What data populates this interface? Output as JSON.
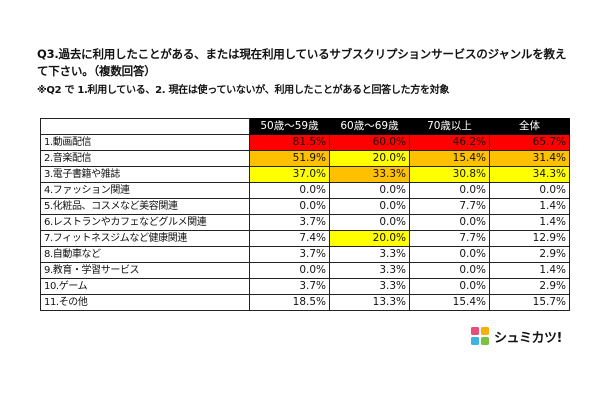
{
  "question": {
    "title": "Q3.過去に利用したことがある、または現在利用しているサブスクリプションサービスのジャンルを教えて下さい。（複数回答）",
    "note": "※Q2 で 1.利用している、2. 現在は使っていないが、利用したことがあると回答した方を対象"
  },
  "logo": {
    "text": "シュミカツ!",
    "icon": "shumikatsu-logo-icon"
  },
  "colors": {
    "red": "#ff0000",
    "orange": "#ffc000",
    "yellow": "#ffff00",
    "none": "#ffffff"
  },
  "chart_data": {
    "type": "table",
    "title": "",
    "columns": [
      "50歳〜59歳",
      "60歳〜69歳",
      "70歳以上",
      "全体"
    ],
    "rows": [
      {
        "label": "1.動画配信",
        "values": [
          "81.5%",
          "60.0%",
          "46.2%",
          "65.7%"
        ],
        "highlight": [
          "red",
          "red",
          "red",
          "red"
        ]
      },
      {
        "label": "2.音楽配信",
        "values": [
          "51.9%",
          "20.0%",
          "15.4%",
          "31.4%"
        ],
        "highlight": [
          "orange",
          "yellow",
          "orange",
          "orange"
        ]
      },
      {
        "label": "3.電子書籍や雑誌",
        "values": [
          "37.0%",
          "33.3%",
          "30.8%",
          "34.3%"
        ],
        "highlight": [
          "yellow",
          "orange",
          "yellow",
          "yellow"
        ]
      },
      {
        "label": "4.ファッション関連",
        "values": [
          "0.0%",
          "0.0%",
          "0.0%",
          "0.0%"
        ],
        "highlight": [
          "none",
          "none",
          "none",
          "none"
        ]
      },
      {
        "label": "5.化粧品、コスメなど美容関連",
        "values": [
          "0.0%",
          "0.0%",
          "7.7%",
          "1.4%"
        ],
        "highlight": [
          "none",
          "none",
          "none",
          "none"
        ]
      },
      {
        "label": "6.レストランやカフェなどグルメ関連",
        "values": [
          "3.7%",
          "0.0%",
          "0.0%",
          "1.4%"
        ],
        "highlight": [
          "none",
          "none",
          "none",
          "none"
        ]
      },
      {
        "label": "7.フィットネスジムなど健康関連",
        "values": [
          "7.4%",
          "20.0%",
          "7.7%",
          "12.9%"
        ],
        "highlight": [
          "none",
          "yellow",
          "none",
          "none"
        ]
      },
      {
        "label": "8.自動車など",
        "values": [
          "3.7%",
          "3.3%",
          "0.0%",
          "2.9%"
        ],
        "highlight": [
          "none",
          "none",
          "none",
          "none"
        ]
      },
      {
        "label": "9.教育・学習サービス",
        "values": [
          "0.0%",
          "3.3%",
          "0.0%",
          "1.4%"
        ],
        "highlight": [
          "none",
          "none",
          "none",
          "none"
        ]
      },
      {
        "label": "10.ゲーム",
        "values": [
          "3.7%",
          "3.3%",
          "0.0%",
          "2.9%"
        ],
        "highlight": [
          "none",
          "none",
          "none",
          "none"
        ]
      },
      {
        "label": "11.その他",
        "values": [
          "18.5%",
          "13.3%",
          "15.4%",
          "15.7%"
        ],
        "highlight": [
          "none",
          "none",
          "none",
          "none"
        ]
      }
    ]
  }
}
